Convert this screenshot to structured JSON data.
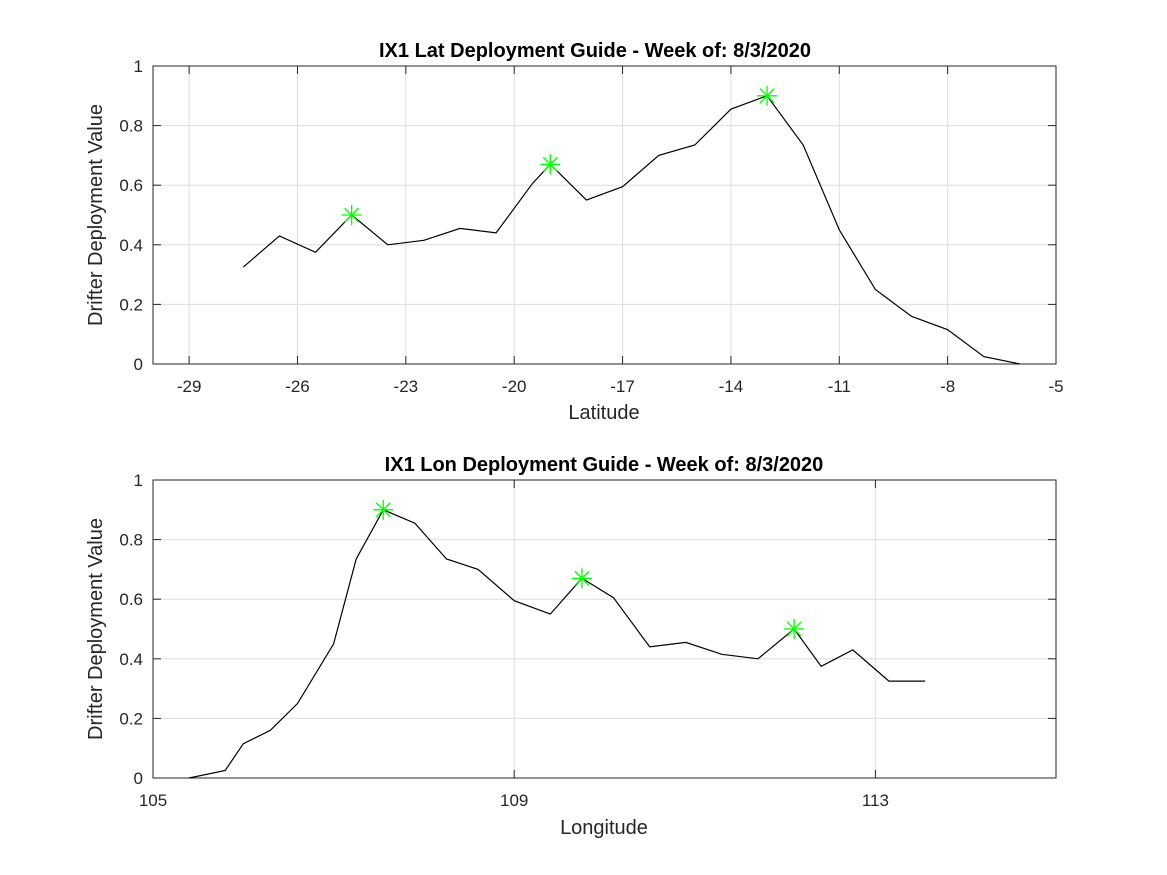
{
  "colors": {
    "line": "#000000",
    "marker": "#00ff00",
    "grid": "#dedede",
    "axis": "#262626"
  },
  "chart_data": [
    {
      "type": "line",
      "title": "IX1 Lat Deployment Guide - Week of: 8/3/2020",
      "xlabel": "Latitude",
      "ylabel": "Drifter Deployment Value",
      "xlim": [
        -30,
        -5
      ],
      "ylim": [
        0,
        1
      ],
      "grid": true,
      "xticks": [
        -29,
        -26,
        -23,
        -20,
        -17,
        -14,
        -11,
        -8,
        -5
      ],
      "xtick_labels": [
        "-29",
        "-26",
        "-23",
        "-20",
        "-17",
        "-14",
        "-11",
        "-8",
        "-5"
      ],
      "yticks": [
        0,
        0.2,
        0.4,
        0.6,
        0.8,
        1
      ],
      "ytick_labels": [
        "0",
        "0.2",
        "0.4",
        "0.6",
        "0.8",
        "1"
      ],
      "series": [
        {
          "x": [
            -27.5,
            -26.5,
            -25.5,
            -24.5,
            -23.5,
            -22.5,
            -21.5,
            -20.5,
            -19.5,
            -19.0,
            -18.0,
            -17.0,
            -16.0,
            -15.0,
            -14.0,
            -13.0,
            -12.0,
            -11.0,
            -10.0,
            -9.0,
            -8.0,
            -7.0,
            -6.0
          ],
          "y": [
            0.325,
            0.43,
            0.375,
            0.5,
            0.4,
            0.415,
            0.455,
            0.44,
            0.605,
            0.67,
            0.55,
            0.595,
            0.7,
            0.735,
            0.855,
            0.9,
            0.735,
            0.45,
            0.25,
            0.16,
            0.115,
            0.025,
            0.0
          ]
        }
      ],
      "markers": {
        "x": [
          -24.5,
          -19.0,
          -13.0
        ],
        "y": [
          0.5,
          0.67,
          0.9
        ],
        "symbol": "asterisk"
      }
    },
    {
      "type": "line",
      "title": "IX1 Lon Deployment Guide - Week of: 8/3/2020",
      "xlabel": "Longitude",
      "ylabel": "Drifter Deployment Value",
      "xlim": [
        105,
        115
      ],
      "ylim": [
        0,
        1
      ],
      "grid": true,
      "xticks": [
        105,
        109,
        113
      ],
      "xtick_labels": [
        "105",
        "109",
        "113"
      ],
      "yticks": [
        0,
        0.2,
        0.4,
        0.6,
        0.8,
        1
      ],
      "ytick_labels": [
        "0",
        "0.2",
        "0.4",
        "0.6",
        "0.8",
        "1"
      ],
      "series": [
        {
          "x": [
            105.4,
            105.8,
            106.0,
            106.3,
            106.6,
            107.0,
            107.25,
            107.55,
            107.9,
            108.25,
            108.6,
            109.0,
            109.4,
            109.75,
            110.1,
            110.5,
            110.9,
            111.3,
            111.7,
            112.1,
            112.4,
            112.75,
            113.15,
            113.55
          ],
          "y": [
            0.0,
            0.025,
            0.115,
            0.16,
            0.25,
            0.45,
            0.735,
            0.9,
            0.855,
            0.735,
            0.7,
            0.595,
            0.55,
            0.67,
            0.605,
            0.44,
            0.455,
            0.415,
            0.4,
            0.5,
            0.375,
            0.43,
            0.325,
            0.325
          ]
        }
      ],
      "markers": {
        "x": [
          107.55,
          109.75,
          112.1
        ],
        "y": [
          0.9,
          0.67,
          0.5
        ],
        "symbol": "asterisk"
      }
    }
  ]
}
